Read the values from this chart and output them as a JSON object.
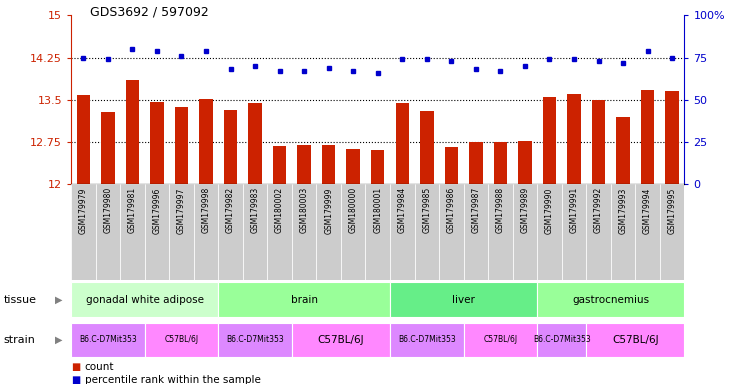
{
  "title": "GDS3692 / 597092",
  "samples": [
    "GSM179979",
    "GSM179980",
    "GSM179981",
    "GSM179996",
    "GSM179997",
    "GSM179998",
    "GSM179982",
    "GSM179983",
    "GSM180002",
    "GSM180003",
    "GSM179999",
    "GSM180000",
    "GSM180001",
    "GSM179984",
    "GSM179985",
    "GSM179986",
    "GSM179987",
    "GSM179988",
    "GSM179989",
    "GSM179990",
    "GSM179991",
    "GSM179992",
    "GSM179993",
    "GSM179994",
    "GSM179995"
  ],
  "counts": [
    13.58,
    13.28,
    13.85,
    13.47,
    13.38,
    13.52,
    13.32,
    13.44,
    12.68,
    12.7,
    12.7,
    12.62,
    12.61,
    13.44,
    13.3,
    12.67,
    12.75,
    12.75,
    12.77,
    13.55,
    13.6,
    13.5,
    13.2,
    13.68,
    13.65
  ],
  "percentiles": [
    75,
    74,
    80,
    79,
    76,
    79,
    68,
    70,
    67,
    67,
    69,
    67,
    66,
    74,
    74,
    73,
    68,
    67,
    70,
    74,
    74,
    73,
    72,
    79,
    75
  ],
  "ylim_left": [
    12,
    15
  ],
  "ylim_right": [
    0,
    100
  ],
  "yticks_left": [
    12,
    12.75,
    13.5,
    14.25,
    15
  ],
  "yticks_right": [
    0,
    25,
    50,
    75,
    100
  ],
  "ytick_labels_left": [
    "12",
    "12.75",
    "13.5",
    "14.25",
    "15"
  ],
  "ytick_labels_right": [
    "0",
    "25",
    "50",
    "75",
    "100%"
  ],
  "hlines": [
    12.75,
    13.5,
    14.25
  ],
  "bar_color": "#cc2200",
  "dot_color": "#0000cc",
  "tissue_groups": [
    {
      "label": "gonadal white adipose",
      "start": 0,
      "end": 6,
      "color": "#ccffcc"
    },
    {
      "label": "brain",
      "start": 6,
      "end": 13,
      "color": "#99ff99"
    },
    {
      "label": "liver",
      "start": 13,
      "end": 19,
      "color": "#66ee88"
    },
    {
      "label": "gastrocnemius",
      "start": 19,
      "end": 25,
      "color": "#99ff99"
    }
  ],
  "strain_groups": [
    {
      "label": "B6.C-D7Mit353",
      "start": 0,
      "end": 3,
      "color": "#dd88ff"
    },
    {
      "label": "C57BL/6J",
      "start": 3,
      "end": 6,
      "color": "#ff88ff"
    },
    {
      "label": "B6.C-D7Mit353",
      "start": 6,
      "end": 9,
      "color": "#dd88ff"
    },
    {
      "label": "C57BL/6J",
      "start": 9,
      "end": 13,
      "color": "#ff88ff"
    },
    {
      "label": "B6.C-D7Mit353",
      "start": 13,
      "end": 16,
      "color": "#dd88ff"
    },
    {
      "label": "C57BL/6J",
      "start": 16,
      "end": 19,
      "color": "#ff88ff"
    },
    {
      "label": "B6.C-D7Mit353",
      "start": 19,
      "end": 21,
      "color": "#dd88ff"
    },
    {
      "label": "C57BL/6J",
      "start": 21,
      "end": 25,
      "color": "#ff88ff"
    }
  ],
  "tissue_label": "tissue",
  "strain_label": "strain",
  "legend_count": "count",
  "legend_percentile": "percentile rank within the sample",
  "background_color": "#ffffff",
  "tick_area_color": "#cccccc"
}
